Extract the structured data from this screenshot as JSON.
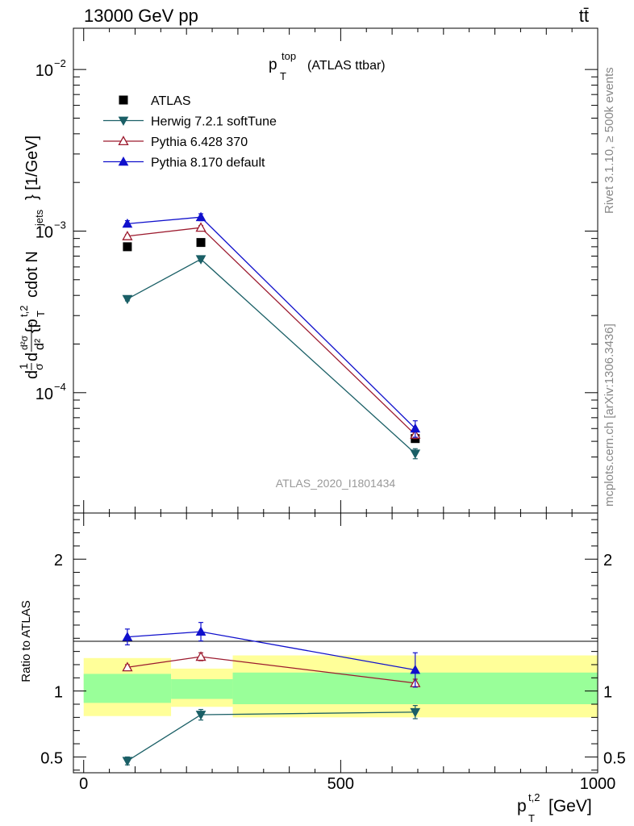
{
  "header": {
    "energy_label": "13000 GeV pp",
    "process_label": "tt̄"
  },
  "side_labels": {
    "rivet": "Rivet 3.1.10, ≥ 500k events",
    "source": "mcplots.cern.ch [arXiv:1306.3436]"
  },
  "analysis_id": "ATLAS_2020_I1801434",
  "chart_data": [
    {
      "type": "line",
      "title": "p_T^top (ATLAS ttbar)",
      "title_parts": {
        "main": "p",
        "sup": "top",
        "sub": "T",
        "rest": "(ATLAS ttbar)"
      },
      "ylabel": "d²σ/dσ... {p_T^t,2 cdot N_jets} [1/GeV]",
      "ylabel_parts": {
        "brace": "{p",
        "sup": "t,2",
        "sub": "T",
        "cdot": "cdot N",
        "jets": "jets",
        "unit": "} [1/GeV]"
      },
      "yscale": "log",
      "ylim": [
        1.8e-05,
        0.018
      ],
      "y_ticks": [
        {
          "value": 0.01,
          "base": "10",
          "exp": "−2"
        },
        {
          "value": 0.001,
          "base": "10",
          "exp": "−3"
        },
        {
          "value": 0.0001,
          "base": "10",
          "exp": "−4"
        }
      ],
      "xlim": [
        -20,
        1000
      ],
      "x": [
        85,
        228,
        645
      ],
      "series": [
        {
          "name": "ATLAS",
          "color": "#000000",
          "marker": "square",
          "values": [
            0.0008,
            0.00085,
            5.2e-05
          ],
          "errors": [
            2e-05,
            2e-05,
            2e-06
          ]
        },
        {
          "name": "Herwig 7.2.1 softTune",
          "color": "#1a5f66",
          "marker": "triangle-down",
          "values": [
            0.00038,
            0.00067,
            4.2e-05
          ],
          "errors": [
            1e-05,
            2e-05,
            3e-06
          ]
        },
        {
          "name": "Pythia 6.428 370",
          "color": "#9c1a2e",
          "marker": "triangle-up-open",
          "values": [
            0.00093,
            0.00105,
            5.5e-05
          ],
          "errors": [
            2e-05,
            3e-05,
            3e-06
          ]
        },
        {
          "name": "Pythia 8.170 default",
          "color": "#1010cc",
          "marker": "triangle-up",
          "values": [
            0.00111,
            0.00122,
            6e-05
          ],
          "errors": [
            5e-05,
            6e-05,
            7e-06
          ]
        }
      ],
      "legend_position": "top-left"
    },
    {
      "type": "line",
      "ylabel": "Ratio to ATLAS",
      "xlabel": "p_T^t,2 [GeV]",
      "xlabel_parts": {
        "main": "p",
        "sup": "t,2",
        "sub": "T",
        "unit": "[GeV]"
      },
      "ylim": [
        0.38,
        2.35
      ],
      "y_ticks": [
        {
          "value": 0.5,
          "label": "0.5"
        },
        {
          "value": 1,
          "label": "1"
        },
        {
          "value": 2,
          "label": "2"
        }
      ],
      "xlim": [
        -20,
        1000
      ],
      "x_ticks": [
        {
          "value": 0,
          "label": "0"
        },
        {
          "value": 500,
          "label": "500"
        },
        {
          "value": 1000,
          "label": "1000"
        }
      ],
      "bands": [
        {
          "x": [
            0,
            170
          ],
          "yellow": [
            0.81,
            1.25
          ],
          "green": [
            0.91,
            1.13
          ]
        },
        {
          "x": [
            170,
            290
          ],
          "yellow": [
            0.88,
            1.17
          ],
          "green": [
            0.94,
            1.09
          ]
        },
        {
          "x": [
            290,
            1000
          ],
          "yellow": [
            0.8,
            1.27
          ],
          "green": [
            0.9,
            1.14
          ]
        }
      ],
      "series": [
        {
          "name": "Herwig 7.2.1 softTune",
          "color": "#1a5f66",
          "marker": "triangle-down",
          "values": [
            0.47,
            0.82,
            0.84
          ],
          "errors": [
            0.03,
            0.04,
            0.05
          ]
        },
        {
          "name": "Pythia 6.428 370",
          "color": "#9c1a2e",
          "marker": "triangle-up-open",
          "values": [
            1.18,
            1.26,
            1.06
          ],
          "errors": [
            0.02,
            0.03,
            0.03
          ]
        },
        {
          "name": "Pythia 8.170 default",
          "color": "#1010cc",
          "marker": "triangle-up",
          "values": [
            1.41,
            1.45,
            1.16
          ],
          "errors": [
            0.06,
            0.07,
            0.13
          ]
        }
      ]
    }
  ]
}
